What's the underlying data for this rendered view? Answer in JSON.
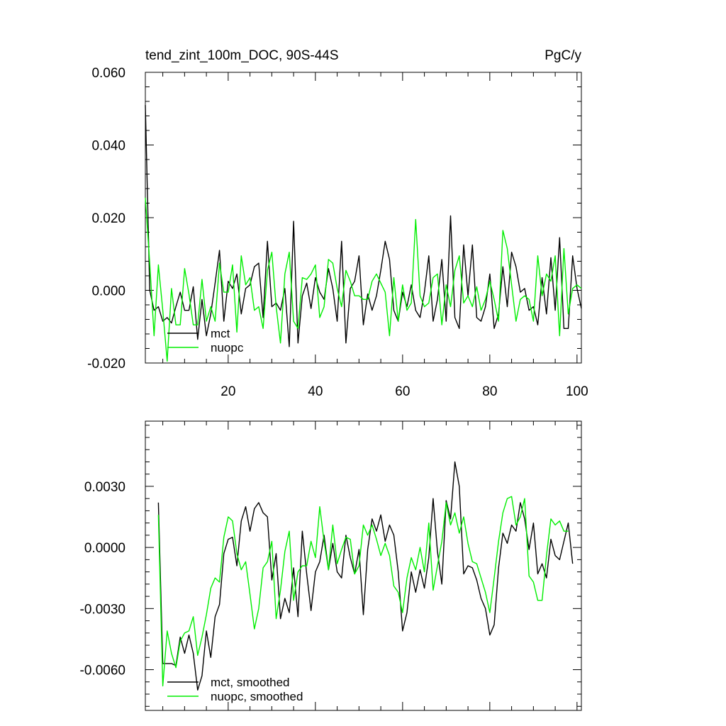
{
  "colors": {
    "mct": "#000000",
    "nuopc": "#00ee00"
  },
  "chart_data": [
    {
      "type": "line",
      "title": "tend_zint_100m_DOC, 90S-44S",
      "units": "PgC/y",
      "xlim": [
        1,
        101
      ],
      "ylim": [
        -0.02,
        0.06
      ],
      "x_ticks": [
        20,
        40,
        60,
        80,
        100
      ],
      "y_ticks": [
        "0.060",
        "0.040",
        "0.020",
        "0.000",
        "-0.020"
      ],
      "legend_placement": "bottom-left",
      "series": [
        {
          "name": "mct",
          "color_key": "mct",
          "x_start": 1,
          "values": [
            0.051,
            0.0,
            -0.0055,
            -0.0045,
            -0.0085,
            -0.0075,
            -0.009,
            -0.0045,
            -0.0005,
            -0.0055,
            -0.0055,
            0.001,
            -0.0135,
            -0.0025,
            -0.0125,
            -0.0065,
            0.002,
            0.011,
            -0.0085,
            0.0025,
            0.0005,
            0.0045,
            -0.0065,
            0.0005,
            0.0015,
            0.0065,
            0.0075,
            -0.0075,
            0.0135,
            -0.0045,
            -0.0035,
            -0.0055,
            0.0005,
            -0.0155,
            0.019,
            -0.0145,
            -0.0015,
            0.002,
            -0.005,
            0.0035,
            -0.0005,
            -0.0025,
            0.006,
            0.0005,
            -0.0085,
            0.0135,
            -0.0145,
            0.0005,
            0.0025,
            0.0095,
            -0.0095,
            -0.001,
            -0.0055,
            -0.0015,
            0.0055,
            0.0135,
            0.0085,
            -0.0055,
            -0.0085,
            -0.0005,
            -0.0045,
            0.0015,
            -0.0055,
            -0.0075,
            -0.0005,
            0.0095,
            -0.0085,
            -0.0025,
            0.0085,
            -0.0085,
            0.0205,
            -0.0075,
            -0.0105,
            0.0125,
            -0.0015,
            0.0125,
            -0.0075,
            -0.0085,
            -0.0045,
            0.0045,
            -0.0105,
            -0.0065,
            0.0065,
            -0.0045,
            0.0105,
            0.0065,
            -0.0005,
            0.0005,
            -0.0055,
            -0.0045,
            -0.0095,
            0.0035,
            -0.0065,
            0.009,
            -0.0055,
            0.0145,
            -0.0105,
            -0.0105,
            0.0095,
            0.0005,
            -0.005
          ]
        },
        {
          "name": "nuopc",
          "color_key": "nuopc",
          "x_start": 1,
          "values": [
            0.0255,
            0.0075,
            -0.0125,
            0.007,
            -0.0055,
            -0.0195,
            0.0005,
            -0.0095,
            -0.0095,
            0.006,
            -0.001,
            -0.0095,
            -0.0095,
            0.003,
            -0.0085,
            -0.0045,
            -0.0085,
            0.0075,
            -0.0005,
            -0.0005,
            0.007,
            -0.0115,
            0.0095,
            0.0015,
            0.0035,
            -0.0055,
            -0.0045,
            -0.0105,
            0.0055,
            0.0105,
            -0.0045,
            -0.0145,
            0.0045,
            0.0105,
            -0.0085,
            -0.0105,
            0.0035,
            0.003,
            0.0045,
            0.007,
            -0.0075,
            -0.0045,
            0.0085,
            0.0075,
            0.0005,
            -0.0045,
            0.0055,
            0.0025,
            -0.0015,
            -0.0015,
            -0.0025,
            -0.0025,
            0.0025,
            0.0045,
            0.002,
            -0.0005,
            -0.0125,
            0.0035,
            -0.0085,
            0.0015,
            -0.0055,
            -0.0035,
            0.0195,
            -0.0015,
            -0.0045,
            -0.0035,
            0.0035,
            0.0045,
            -0.0095,
            0.0015,
            -0.0045,
            0.0055,
            0.0095,
            -0.0035,
            -0.0015,
            -0.0045,
            0.001,
            -0.0055,
            -0.0025,
            0.0025,
            -0.0025,
            -0.0085,
            0.0165,
            0.0115,
            0.0015,
            -0.0085,
            -0.0025,
            -0.0015,
            -0.0025,
            -0.0085,
            0.0095,
            -0.0015,
            0.0045,
            0.0025,
            0.0095,
            -0.0125,
            0.0115,
            -0.0065,
            0.0005,
            0.0015,
            0.0005
          ]
        }
      ]
    },
    {
      "type": "line",
      "title": "",
      "xlim": [
        1,
        101
      ],
      "ylim": [
        -0.008,
        0.0062
      ],
      "y_ticks": [
        "0.0030",
        "0.0000",
        "-0.0030",
        "-0.0060"
      ],
      "legend_placement": "bottom-left",
      "series": [
        {
          "name": "mct, smoothed",
          "color_key": "mct",
          "x_start": 4,
          "values": [
            0.0022,
            -0.0057,
            -0.0057,
            -0.0057,
            -0.0058,
            -0.0044,
            -0.0052,
            -0.0043,
            -0.0052,
            -0.007,
            -0.0063,
            -0.0041,
            -0.0054,
            -0.0034,
            -0.0028,
            -0.0003,
            0.0004,
            0.0005,
            -0.0009,
            0.0013,
            0.002,
            0.0008,
            0.0019,
            0.0022,
            0.0017,
            0.0015,
            -0.0016,
            -0.0003,
            -0.0035,
            -0.0025,
            -0.0032,
            -0.001,
            -0.0034,
            0.0008,
            -0.0013,
            -0.0031,
            -0.0012,
            -0.0007,
            0.0006,
            -0.0011,
            0.0002,
            -0.0012,
            -0.0015,
            0.0006,
            -0.0005,
            -0.0013,
            -0.0001,
            -0.0033,
            -0.0001,
            0.0014,
            0.0008,
            0.0016,
            0.0003,
            0.0011,
            0.0006,
            -0.0012,
            -0.0041,
            -0.0032,
            -0.0012,
            -0.0022,
            -0.0011,
            -0.002,
            -0.0005,
            0.0024,
            -0.0002,
            -0.0018,
            0.0023,
            0.0014,
            0.0042,
            0.003,
            -0.0013,
            -0.0009,
            -0.001,
            -0.0016,
            -0.0025,
            -0.003,
            -0.0043,
            -0.0038,
            -0.001,
            0.0007,
            0.0002,
            0.0011,
            0.0008,
            0.0022,
            0.0014,
            -0.0001,
            0.0012,
            -0.0013,
            -0.0008,
            -0.0015,
            0.0004,
            -0.0004,
            -0.0006,
            0.0003,
            0.0012,
            -0.0008
          ]
        },
        {
          "name": "nuopc, smoothed",
          "color_key": "nuopc",
          "x_start": 4,
          "values": [
            0.0016,
            -0.0068,
            -0.0041,
            -0.0052,
            -0.0059,
            -0.0046,
            -0.0042,
            -0.0041,
            -0.0034,
            -0.0053,
            -0.0044,
            -0.0033,
            -0.002,
            -0.0015,
            -0.0017,
            0.0005,
            0.0015,
            0.0013,
            -0.0003,
            -0.0011,
            -0.0007,
            -0.0023,
            -0.004,
            -0.003,
            -0.001,
            -0.0007,
            0.0003,
            -0.0035,
            -0.0021,
            -0.0002,
            0.0008,
            -0.0026,
            -0.0012,
            -0.0009,
            -0.0009,
            0.0003,
            -0.0005,
            0.002,
            0.0003,
            -0.0011,
            0.0011,
            -0.0008,
            -0.0001,
            0.0005,
            0.0004,
            -0.0013,
            -0.0009,
            0.0011,
            0.0006,
            0.0011,
            0.0004,
            -0.0004,
            0.0002,
            -0.0004,
            -0.0019,
            -0.0022,
            -0.0032,
            -0.0015,
            -0.0005,
            -0.0011,
            0.0,
            -0.0012,
            0.0012,
            -0.0021,
            -0.0009,
            0.0003,
            0.0022,
            0.0011,
            0.0017,
            0.0007,
            0.0015,
            0.0002,
            -0.0007,
            -0.0008,
            -0.0015,
            -0.0022,
            -0.0032,
            -0.0015,
            0.0003,
            0.0017,
            0.0024,
            0.0025,
            0.0011,
            0.0015,
            0.0024,
            -0.0014,
            -0.0017,
            -0.0026,
            -0.0026,
            -0.0004,
            0.0014,
            0.0011,
            0.0013,
            0.0008,
            0.0008
          ]
        }
      ]
    }
  ]
}
